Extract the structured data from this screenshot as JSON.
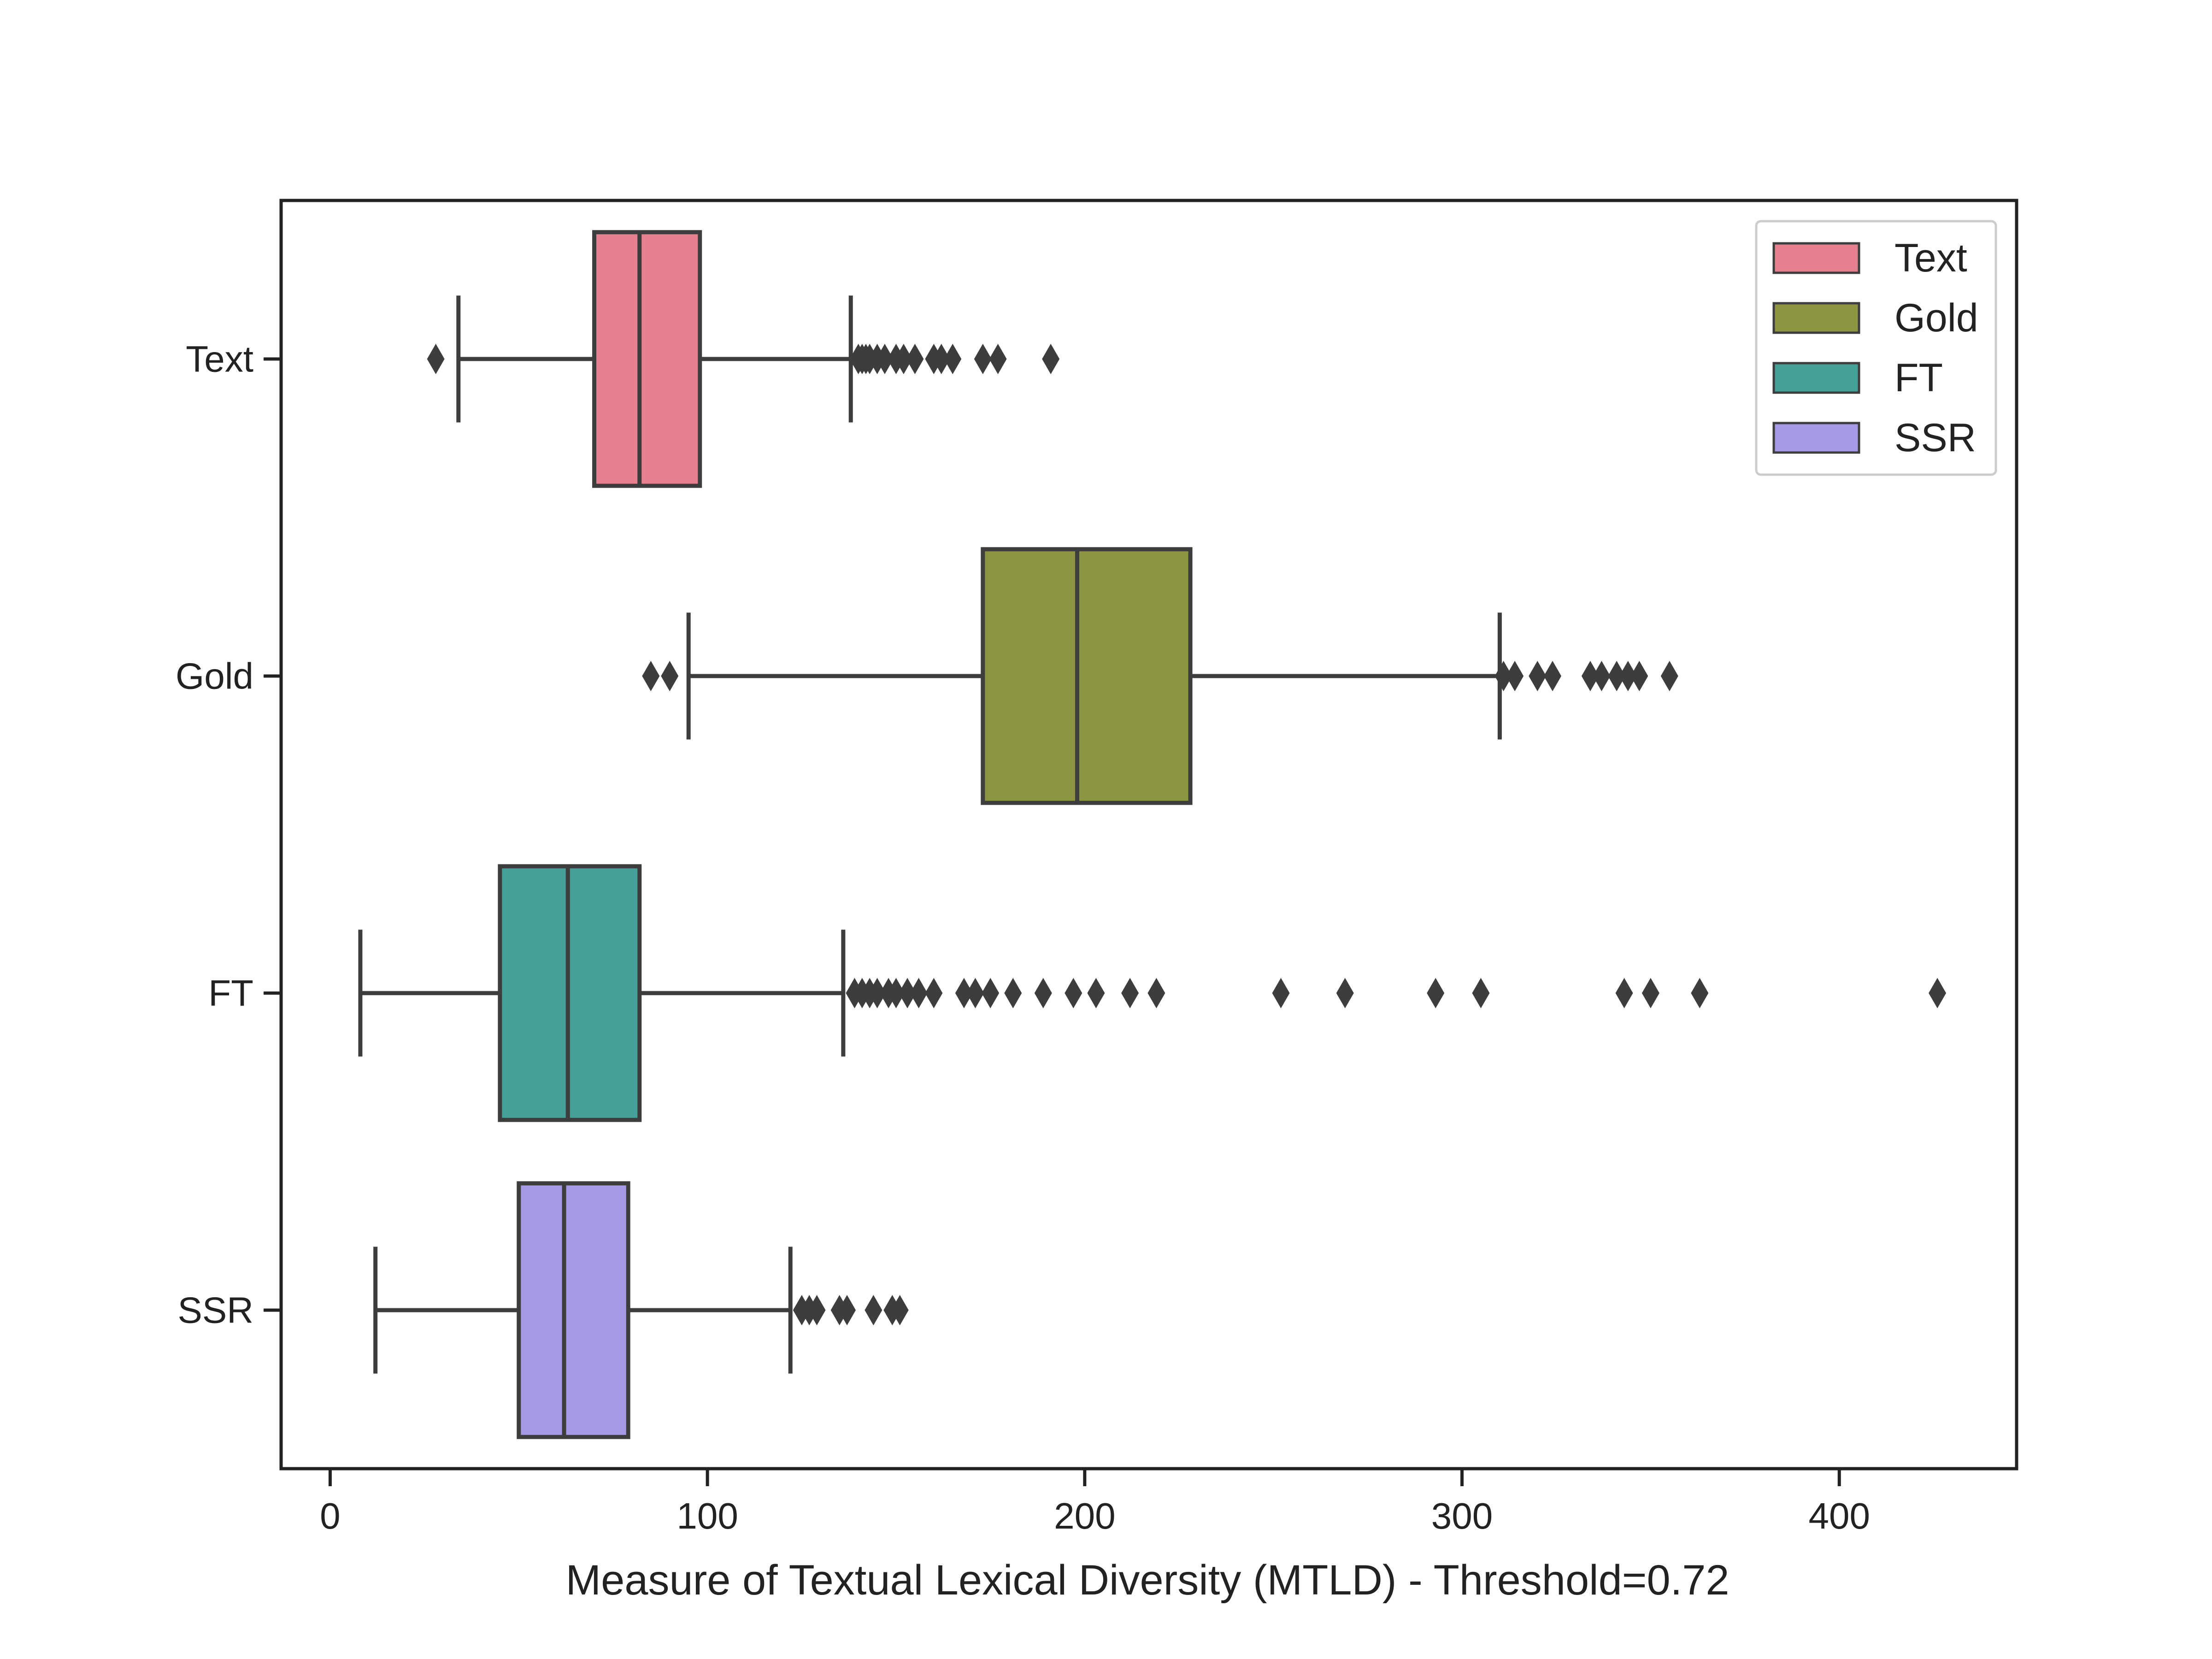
{
  "chart_data": {
    "type": "boxplot",
    "orientation": "horizontal",
    "title": "",
    "xlabel": "Measure of Textual Lexical Diversity (MTLD) - Threshold=0.72",
    "ylabel": "",
    "xlim": [
      -13,
      447
    ],
    "xticks": [
      0,
      100,
      200,
      300,
      400
    ],
    "grid": false,
    "legend_position": "top-right",
    "series": [
      {
        "name": "Text",
        "color": "#e5808f",
        "whisker_low": 34,
        "q1": 70,
        "median": 82,
        "q3": 98,
        "whisker_high": 138,
        "outliers": [
          28,
          140,
          141,
          142,
          143,
          145,
          147,
          150,
          152,
          155,
          160,
          162,
          165,
          173,
          177,
          191
        ]
      },
      {
        "name": "Gold",
        "color": "#8d9541",
        "whisker_low": 95,
        "q1": 173,
        "median": 198,
        "q3": 228,
        "whisker_high": 310,
        "outliers": [
          85,
          90,
          311,
          314,
          320,
          324,
          334,
          337,
          341,
          344,
          347,
          355
        ]
      },
      {
        "name": "FT",
        "color": "#46a09a",
        "whisker_low": 8,
        "q1": 45,
        "median": 63,
        "q3": 82,
        "whisker_high": 136,
        "outliers": [
          139,
          141,
          143,
          145,
          148,
          150,
          153,
          156,
          160,
          168,
          171,
          175,
          181,
          189,
          197,
          203,
          212,
          219,
          252,
          269,
          293,
          305,
          343,
          350,
          363,
          426
        ]
      },
      {
        "name": "SSR",
        "color": "#a899e6",
        "whisker_low": 12,
        "q1": 50,
        "median": 62,
        "q3": 79,
        "whisker_high": 122,
        "outliers": [
          125,
          127,
          129,
          135,
          137,
          144,
          149,
          151
        ]
      }
    ]
  }
}
